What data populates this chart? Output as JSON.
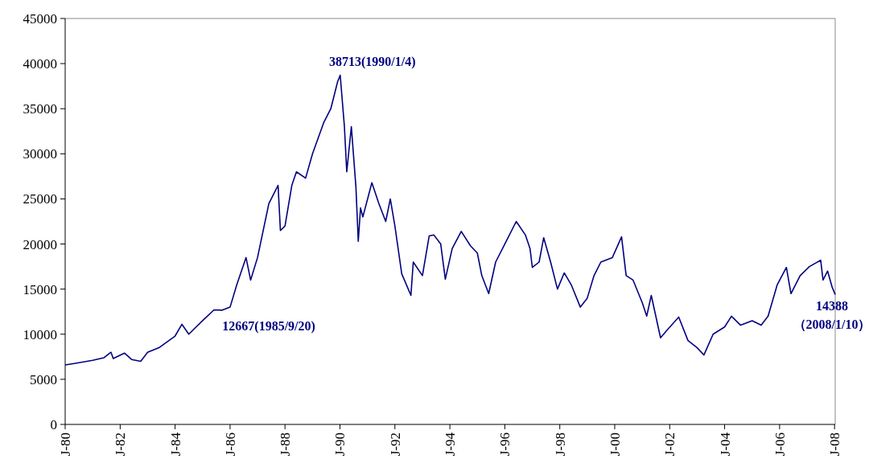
{
  "chart_data": {
    "type": "line",
    "x": [
      "1980-01",
      "1980-06",
      "1981-01",
      "1981-06",
      "1981-09",
      "1981-10",
      "1982-03",
      "1982-06",
      "1982-10",
      "1983-01",
      "1983-06",
      "1984-01",
      "1984-04",
      "1984-07",
      "1985-01",
      "1985-06",
      "1985-09-20",
      "1986-01",
      "1986-04",
      "1986-08",
      "1986-10",
      "1987-01",
      "1987-06",
      "1987-10",
      "1987-11",
      "1988-01",
      "1988-04",
      "1988-06",
      "1988-10",
      "1989-01",
      "1989-06",
      "1989-09",
      "1989-12",
      "1990-01-04",
      "1990-03",
      "1990-04",
      "1990-06",
      "1990-08",
      "1990-09",
      "1990-10",
      "1990-11",
      "1991-03",
      "1991-06",
      "1991-09",
      "1991-11",
      "1992-01",
      "1992-04",
      "1992-08",
      "1992-09",
      "1993-01",
      "1993-04",
      "1993-06",
      "1993-09",
      "1993-11",
      "1994-02",
      "1994-06",
      "1994-10",
      "1995-01",
      "1995-03",
      "1995-06",
      "1995-09",
      "1996-01",
      "1996-06",
      "1996-10",
      "1996-12",
      "1997-01",
      "1997-04",
      "1997-06",
      "1997-09",
      "1997-12",
      "1998-03",
      "1998-06",
      "1998-10",
      "1999-01",
      "1999-04",
      "1999-07",
      "1999-12",
      "2000-04",
      "2000-06",
      "2000-09",
      "2001-01",
      "2001-03",
      "2001-05",
      "2001-09",
      "2001-12",
      "2002-05",
      "2002-09",
      "2003-01",
      "2003-04",
      "2003-08",
      "2004-01",
      "2004-04",
      "2004-08",
      "2005-01",
      "2005-05",
      "2005-08",
      "2005-12",
      "2006-04",
      "2006-06",
      "2006-10",
      "2007-02",
      "2007-07",
      "2007-08",
      "2007-10",
      "2007-12",
      "2008-01-10"
    ],
    "series": [
      {
        "color": "#000080",
        "values": [
          6600,
          6800,
          7100,
          7400,
          8000,
          7300,
          7900,
          7200,
          7000,
          8000,
          8500,
          9800,
          11100,
          10000,
          11500,
          12700,
          12667,
          13000,
          15500,
          18500,
          16000,
          18500,
          24500,
          26500,
          21500,
          22000,
          26500,
          28000,
          27300,
          30000,
          33500,
          35000,
          38000,
          38713,
          33000,
          28000,
          33000,
          26300,
          20300,
          24000,
          23000,
          26800,
          24500,
          22500,
          25000,
          22000,
          16700,
          14300,
          18000,
          16500,
          20900,
          21000,
          20000,
          16100,
          19500,
          21400,
          19800,
          19000,
          16500,
          14500,
          18000,
          20000,
          22500,
          21000,
          19500,
          17400,
          18000,
          20700,
          18000,
          15000,
          16800,
          15500,
          13000,
          14000,
          16500,
          18000,
          18500,
          20800,
          16500,
          16000,
          13500,
          12000,
          14300,
          9600,
          10500,
          11900,
          9300,
          8500,
          7700,
          10000,
          10800,
          12000,
          11000,
          11500,
          11000,
          12000,
          15500,
          17400,
          14500,
          16500,
          17500,
          18200,
          16000,
          17000,
          15200,
          14388
        ]
      }
    ],
    "xlim": [
      "1980-01",
      "2008-01-10"
    ],
    "xticks": [
      {
        "value": "1980-01",
        "label": "J-80"
      },
      {
        "value": "1982-01",
        "label": "J-82"
      },
      {
        "value": "1984-01",
        "label": "J-84"
      },
      {
        "value": "1986-01",
        "label": "J-86"
      },
      {
        "value": "1988-01",
        "label": "J-88"
      },
      {
        "value": "1990-01",
        "label": "J-90"
      },
      {
        "value": "1992-01",
        "label": "J-92"
      },
      {
        "value": "1994-01",
        "label": "J-94"
      },
      {
        "value": "1996-01",
        "label": "J-96"
      },
      {
        "value": "1998-01",
        "label": "J-98"
      },
      {
        "value": "2000-01",
        "label": "J-00"
      },
      {
        "value": "2002-01",
        "label": "J-02"
      },
      {
        "value": "2004-01",
        "label": "J-04"
      },
      {
        "value": "2006-01",
        "label": "J-06"
      },
      {
        "value": "2008-01",
        "label": "J-08"
      }
    ],
    "ylim": [
      0,
      45000
    ],
    "yticks": [
      0,
      5000,
      10000,
      15000,
      20000,
      25000,
      30000,
      35000,
      40000,
      45000
    ],
    "annotations": [
      {
        "text": "38713(1990/1/4)",
        "x": "1990-01-04",
        "y": 38713
      },
      {
        "text": "12667(1985/9/20)",
        "x": "1985-09-20",
        "y": 12667
      },
      {
        "text": "14388\n（2008/1/10）",
        "x": "2008-01-10",
        "y": 14388
      }
    ]
  }
}
